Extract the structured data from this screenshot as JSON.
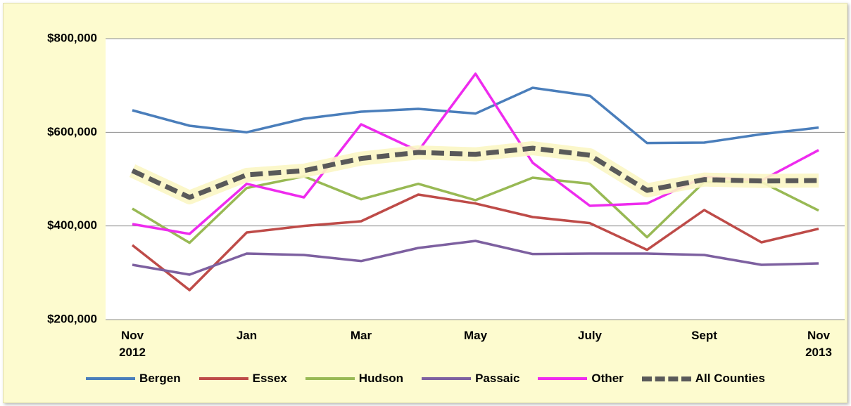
{
  "chart_data": {
    "type": "line",
    "categories": [
      "Nov\n2012",
      null,
      "Jan",
      null,
      "Mar",
      null,
      "May",
      null,
      "July",
      null,
      "Sept",
      null,
      "Nov\n2013"
    ],
    "ylim": [
      200000,
      800000
    ],
    "yticks": [
      {
        "value": 200000,
        "label": "$200,000"
      },
      {
        "value": 400000,
        "label": "$400,000"
      },
      {
        "value": 600000,
        "label": "$600,000"
      },
      {
        "value": 800000,
        "label": "$800,000"
      }
    ],
    "grid": true,
    "legend": "bottom",
    "series": [
      {
        "name": "Bergen",
        "color": "#4a7ebb",
        "values": [
          647000,
          614000,
          600000,
          629000,
          644000,
          650000,
          640000,
          695000,
          678000,
          577000,
          578000,
          596000,
          610000
        ]
      },
      {
        "name": "Essex",
        "color": "#be4b48",
        "values": [
          359000,
          263000,
          386000,
          400000,
          410000,
          467000,
          448000,
          419000,
          406000,
          349000,
          434000,
          365000,
          394000
        ]
      },
      {
        "name": "Hudson",
        "color": "#98b954",
        "values": [
          437000,
          364000,
          481000,
          506000,
          457000,
          490000,
          455000,
          503000,
          490000,
          376000,
          494000,
          494000,
          433000
        ]
      },
      {
        "name": "Passaic",
        "color": "#7d60a0",
        "values": [
          317000,
          296000,
          341000,
          338000,
          325000,
          353000,
          368000,
          340000,
          341000,
          341000,
          338000,
          317000,
          320000
        ]
      },
      {
        "name": "Other",
        "color": "#ee2bee",
        "values": [
          404000,
          383000,
          490000,
          461000,
          617000,
          560000,
          725000,
          535000,
          443000,
          448000,
          505000,
          497000,
          562000
        ]
      },
      {
        "name": "All Counties",
        "color": "#595959",
        "style": "dashed",
        "values": [
          518000,
          461000,
          509000,
          518000,
          544000,
          557000,
          553000,
          566000,
          551000,
          476000,
          499000,
          496000,
          497000
        ]
      }
    ]
  }
}
